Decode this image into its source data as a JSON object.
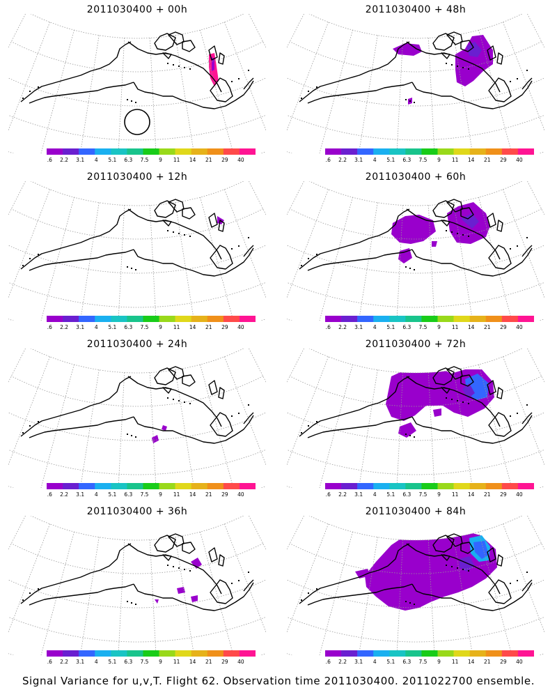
{
  "panels": [
    {
      "title": "2011030400 + 00h",
      "hours": 0
    },
    {
      "title": "2011030400 + 48h",
      "hours": 48
    },
    {
      "title": "2011030400 + 12h",
      "hours": 12
    },
    {
      "title": "2011030400 + 60h",
      "hours": 60
    },
    {
      "title": "2011030400 + 24h",
      "hours": 24
    },
    {
      "title": "2011030400 + 72h",
      "hours": 72
    },
    {
      "title": "2011030400 + 36h",
      "hours": 36
    },
    {
      "title": "2011030400 + 84h",
      "hours": 84
    }
  ],
  "legend": {
    "tick_labels": [
      "1.6",
      "2.2",
      "3.1",
      "4",
      "5.1",
      "6.3",
      "7.5",
      "9",
      "11",
      "14",
      "21",
      "29",
      "40"
    ],
    "colors": [
      "#9900cc",
      "#6a1fd0",
      "#3366ff",
      "#1ab0f0",
      "#19c4c4",
      "#19c48c",
      "#19cc19",
      "#99d91a",
      "#e0d81a",
      "#e6b21a",
      "#f0901a",
      "#ff4a4a",
      "#ff1493"
    ]
  },
  "footer": "Signal Variance for u,v,T. Flight 62. Observation time 2011030400. 2011022700 ensemble.",
  "colors": {
    "coastline": "#000000",
    "grid": "#999999",
    "background": "#ffffff"
  }
}
